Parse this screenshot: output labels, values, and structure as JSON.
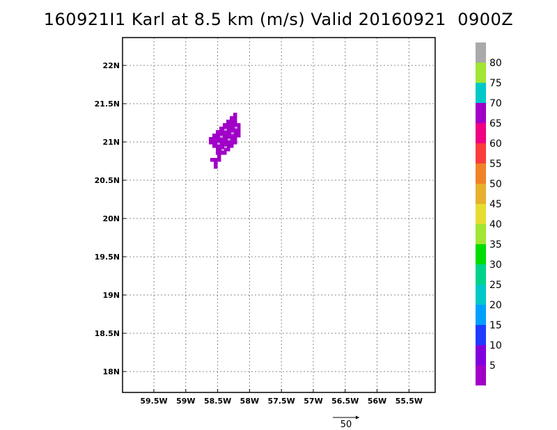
{
  "title": "160921I1 Karl at 8.5 km (m/s) Valid 20160921  0900Z",
  "map": {
    "lon_labels": [
      "59.5W",
      "59W",
      "58.5W",
      "58W",
      "57.5W",
      "57W",
      "56.5W",
      "56W",
      "55.5W"
    ],
    "lat_labels": [
      "22N",
      "21.5N",
      "21N",
      "20.5N",
      "20N",
      "19.5N",
      "19N",
      "18.5N",
      "18N"
    ],
    "lon_values": [
      -59.5,
      -59,
      -58.5,
      -58,
      -57.5,
      -57,
      -56.5,
      -56,
      -55.5
    ],
    "lat_values": [
      22,
      21.5,
      21,
      20.5,
      20,
      19.5,
      19,
      18.5,
      18
    ],
    "wind_region": {
      "color": "#a000c8",
      "center_lon": -58.45,
      "center_lat": 20.95
    }
  },
  "colorbar": {
    "labels": [
      "5",
      "10",
      "15",
      "20",
      "25",
      "30",
      "35",
      "40",
      "45",
      "50",
      "55",
      "60",
      "65",
      "70",
      "75",
      "80"
    ],
    "colors": [
      "#a000c8",
      "#8200dc",
      "#1e3cff",
      "#00a0ff",
      "#00c8c8",
      "#00d28c",
      "#00dc00",
      "#a0e632",
      "#e6dc32",
      "#e6af2d",
      "#f08228",
      "#fa3c3c",
      "#f00082",
      "#a000c8",
      "#00c8c8",
      "#a0e632",
      "#aaaaaa"
    ]
  },
  "vector_legend": {
    "label": "50"
  }
}
